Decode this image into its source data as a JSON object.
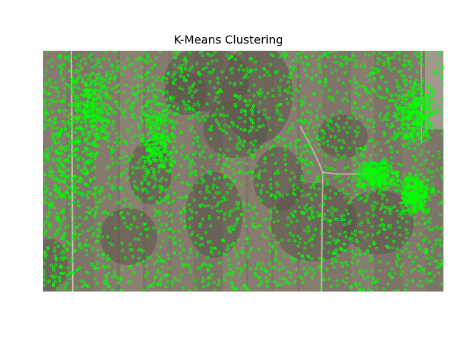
{
  "figure": {
    "title": "K-Means Clustering",
    "marker_color": "#00ff00",
    "image_description_colors": {
      "soil_light": "#8a7b6d",
      "soil_dark": "#3f3a33",
      "vegetation_dark": "#2d2a22"
    },
    "content": "aerial-image-with-cluster-markers"
  }
}
